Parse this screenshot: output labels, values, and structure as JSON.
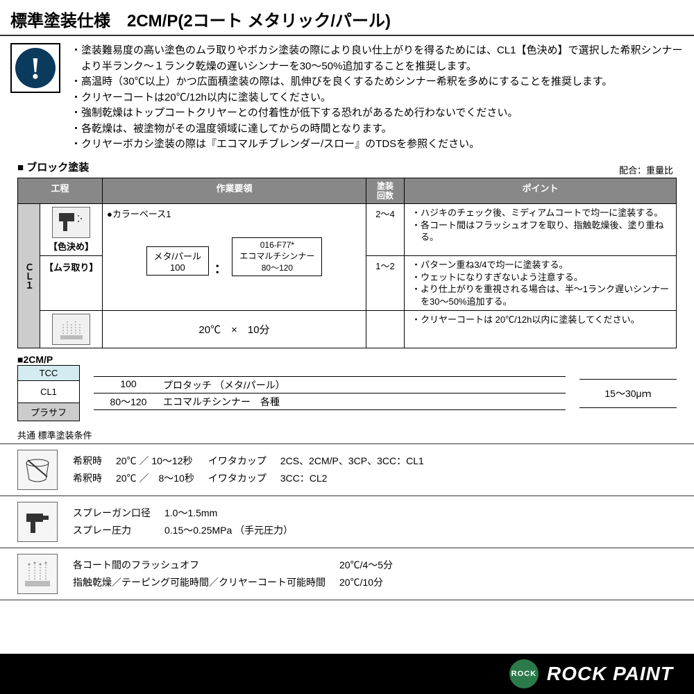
{
  "title": "標準塗装仕様　2CM/P(2コート メタリック/パール)",
  "warnings": [
    "塗装難易度の高い塗色のムラ取りやボカシ塗装の際により良い仕上がりを得るためには、CL1【色決め】で選択した希釈シンナーより半ランク～１ランク乾燥の遅いシンナーを30～50%追加することを推奨します。",
    "高温時（30℃以上）かつ広面積塗装の際は、肌伸びを良くするためシンナー希釈を多めにすることを推奨します。",
    "クリヤーコートは20℃/12h以内に塗装してください。",
    "強制乾燥はトップコートクリヤーとの付着性が低下する恐れがあるため行わないでください。",
    "各乾燥は、被塗物がその温度領域に達してからの時間となります。",
    "クリヤーボカシ塗装の際は『エコマルチブレンダー/スロー』のTDSを参照ください。"
  ],
  "block_title": "■ ブロック塗装",
  "ratio_note": "配合：重量比",
  "table": {
    "headers": {
      "process": "工程",
      "work": "作業要領",
      "count": "塗装\n回数",
      "points": "ポイント"
    },
    "side": "ＣＬ１",
    "rows": [
      {
        "step_label": "【色決め】",
        "work_head": "●カラーベース1",
        "ratio": {
          "left_top": "メタ/パール",
          "left_bot": "100",
          "right_top": "016-F77*\nエコマルチシンナー",
          "right_bot": "80～120"
        },
        "count": "2～4",
        "points": [
          "ハジキのチェック後、ミディアムコートで均一に塗装する。",
          "各コート間はフラッシュオフを取り、指触乾燥後、塗り重ねる。"
        ]
      },
      {
        "step_label": "【ムラ取り】",
        "count": "1～2",
        "points": [
          "パターン重ね3/4で均一に塗装する。",
          "ウェットになりすぎないよう注意する。",
          "より仕上がりを重視される場合は、半～1ランク遅いシンナーを30～50%追加する。"
        ]
      },
      {
        "dry_text": "20℃　×　10分",
        "points": [
          "クリヤーコートは 20℃/12h以内に塗装してください。"
        ]
      }
    ]
  },
  "layers": {
    "title": "■2CM/P",
    "stack": {
      "tcc": "TCC",
      "cl1": "CL1",
      "prasaf": "プラサフ"
    },
    "lines": [
      {
        "num": "100",
        "text": "プロタッチ （メタ/パール）"
      },
      {
        "num": "80～120",
        "text": "エコマルチシンナー　各種"
      }
    ],
    "thickness": "15～30μｍ"
  },
  "cond_title": "共通 標準塗装条件",
  "conditions": [
    {
      "rows": [
        [
          "希釈時",
          "20℃ ／ 10～12秒",
          "イワタカップ",
          "2CS、2CM/P、3CP、3CC：CL1"
        ],
        [
          "希釈時",
          "20℃ ／　8～10秒",
          "イワタカップ",
          "3CC：CL2"
        ]
      ]
    },
    {
      "rows": [
        [
          "スプレーガン口径",
          "1.0～1.5mm"
        ],
        [
          "スプレー圧力",
          "0.15～0.25MPa （手元圧力）"
        ]
      ]
    },
    {
      "rows": [
        [
          "各コート間のフラッシュオフ",
          "20℃/4～5分"
        ],
        [
          "指触乾燥／テーピング可能時間／クリヤーコート可能時間",
          "20℃/10分"
        ]
      ]
    }
  ],
  "footer": {
    "logo": "ROCK",
    "text": "ROCK PAINT"
  }
}
